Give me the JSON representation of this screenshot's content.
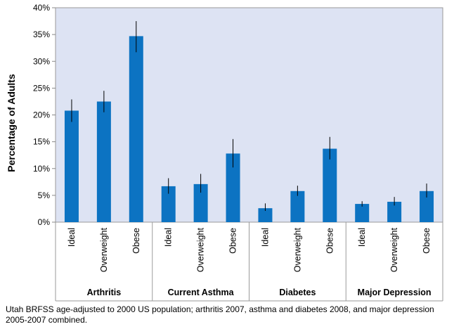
{
  "chart_data": {
    "type": "bar",
    "ylabel": "Percentage of Adults",
    "xlabel": "",
    "ylim": [
      0,
      40
    ],
    "yticks": [
      "0%",
      "5%",
      "10%",
      "15%",
      "20%",
      "25%",
      "30%",
      "35%",
      "40%"
    ],
    "grid": false,
    "plot_background": "#dde3f3",
    "bar_color": "#0c73c2",
    "groups": [
      {
        "name": "Arthritis",
        "categories": [
          "Ideal",
          "Overweight",
          "Obese"
        ],
        "values": [
          20.8,
          22.5,
          34.7
        ],
        "error_low": [
          18.7,
          20.5,
          31.7
        ],
        "error_high": [
          22.9,
          24.5,
          37.5
        ]
      },
      {
        "name": "Current Asthma",
        "categories": [
          "Ideal",
          "Overweight",
          "Obese"
        ],
        "values": [
          6.7,
          7.1,
          12.8
        ],
        "error_low": [
          5.3,
          5.5,
          10.2
        ],
        "error_high": [
          8.2,
          9.0,
          15.5
        ]
      },
      {
        "name": "Diabetes",
        "categories": [
          "Ideal",
          "Overweight",
          "Obese"
        ],
        "values": [
          2.6,
          5.8,
          13.7
        ],
        "error_low": [
          2.1,
          4.9,
          11.7
        ],
        "error_high": [
          3.5,
          6.8,
          15.9
        ]
      },
      {
        "name": "Major Depression",
        "categories": [
          "Ideal",
          "Overweight",
          "Obese"
        ],
        "values": [
          3.4,
          3.8,
          5.8
        ],
        "error_low": [
          2.9,
          3.1,
          4.6
        ],
        "error_high": [
          3.9,
          4.7,
          7.2
        ]
      }
    ]
  },
  "footnote": "Utah BRFSS age-adjusted to 2000 US population; arthritis 2007, asthma and diabetes 2008, and major depression 2005-2007 combined."
}
